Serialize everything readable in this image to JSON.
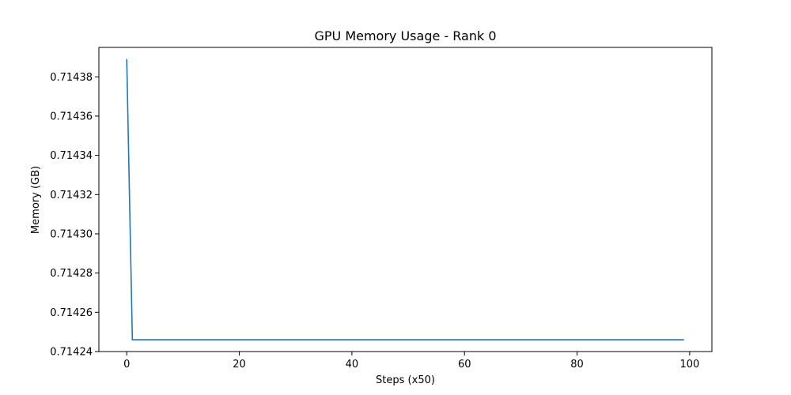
{
  "chart_data": {
    "type": "line",
    "title": "GPU Memory Usage - Rank 0",
    "xlabel": "Steps (x50)",
    "ylabel": "Memory (GB)",
    "xlim": [
      -4.95,
      103.95
    ],
    "ylim": [
      0.71424,
      0.714395
    ],
    "xticks": [
      0,
      20,
      40,
      60,
      80,
      100
    ],
    "yticks": [
      0.71424,
      0.71426,
      0.71428,
      0.7143,
      0.71432,
      0.71434,
      0.71436,
      0.71438
    ],
    "ytick_decimals": 5,
    "grid": false,
    "legend": "none",
    "series_color": "#1f77b4",
    "series": [
      {
        "x_start": 0,
        "x_end": 99,
        "values": [
          0.714389,
          0.714246,
          0.714246,
          0.714246,
          0.714246,
          0.714246,
          0.714246,
          0.714246,
          0.714246,
          0.714246,
          0.714246,
          0.714246,
          0.714246,
          0.714246,
          0.714246,
          0.714246,
          0.714246,
          0.714246,
          0.714246,
          0.714246,
          0.714246,
          0.714246,
          0.714246,
          0.714246,
          0.714246,
          0.714246,
          0.714246,
          0.714246,
          0.714246,
          0.714246,
          0.714246,
          0.714246,
          0.714246,
          0.714246,
          0.714246,
          0.714246,
          0.714246,
          0.714246,
          0.714246,
          0.714246,
          0.714246,
          0.714246,
          0.714246,
          0.714246,
          0.714246,
          0.714246,
          0.714246,
          0.714246,
          0.714246,
          0.714246,
          0.714246,
          0.714246,
          0.714246,
          0.714246,
          0.714246,
          0.714246,
          0.714246,
          0.714246,
          0.714246,
          0.714246,
          0.714246,
          0.714246,
          0.714246,
          0.714246,
          0.714246,
          0.714246,
          0.714246,
          0.714246,
          0.714246,
          0.714246,
          0.714246,
          0.714246,
          0.714246,
          0.714246,
          0.714246,
          0.714246,
          0.714246,
          0.714246,
          0.714246,
          0.714246,
          0.714246,
          0.714246,
          0.714246,
          0.714246,
          0.714246,
          0.714246,
          0.714246,
          0.714246,
          0.714246,
          0.714246,
          0.714246,
          0.714246,
          0.714246,
          0.714246,
          0.714246,
          0.714246,
          0.714246,
          0.714246,
          0.714246,
          0.714246
        ]
      }
    ]
  }
}
